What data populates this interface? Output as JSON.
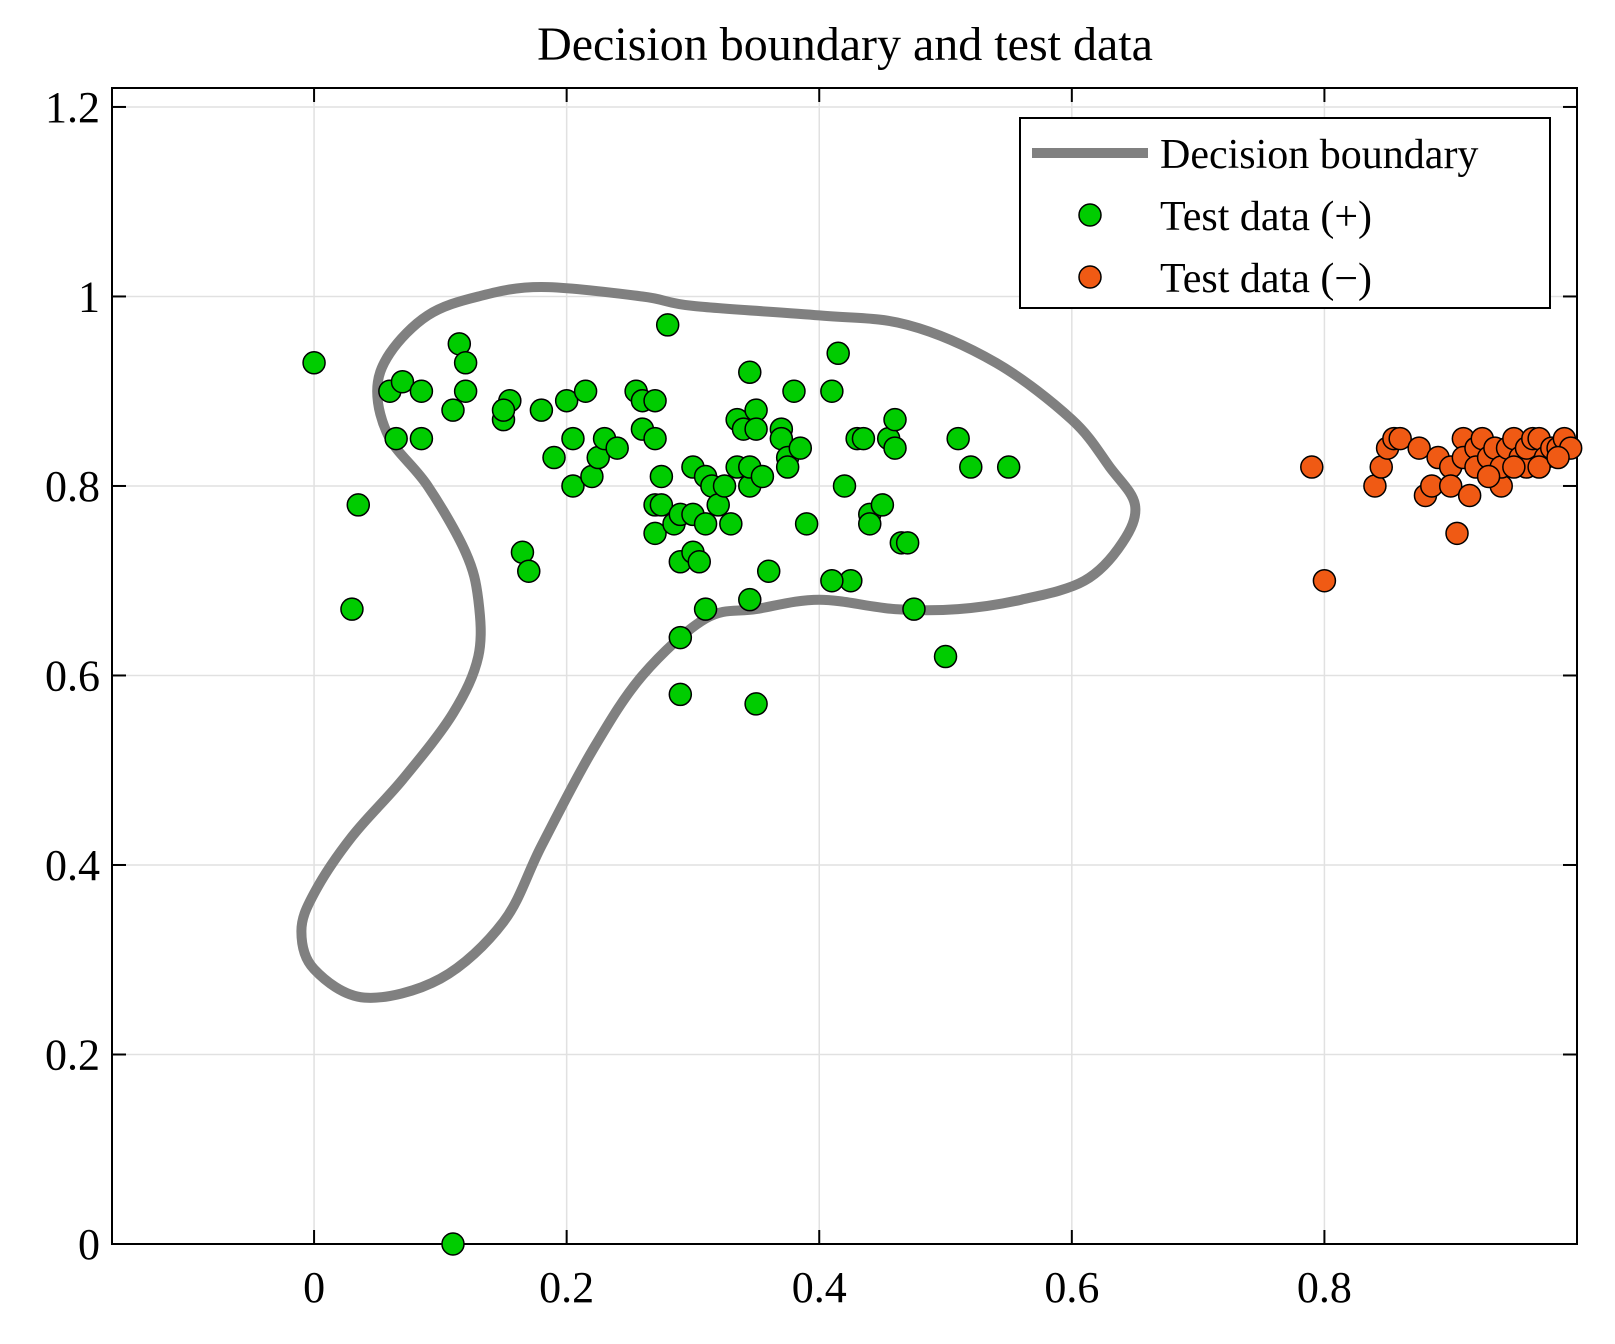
{
  "chart_data": {
    "type": "scatter",
    "title": "Decision boundary and test data",
    "xlabel": "",
    "ylabel": "",
    "xlim": [
      -0.16,
      1.0
    ],
    "ylim": [
      0,
      1.22
    ],
    "grid": true,
    "x_ticks": [
      0,
      0.2,
      0.4,
      0.6,
      0.8
    ],
    "x_tick_labels": [
      "0",
      "0.2",
      "0.4",
      "0.6",
      "0.8"
    ],
    "y_ticks": [
      0,
      0.2,
      0.4,
      0.6,
      0.8,
      1.0,
      1.2
    ],
    "y_tick_labels": [
      "0",
      "0.2",
      "0.4",
      "0.6",
      "0.8",
      "1",
      "1.2"
    ],
    "legend_position": "top-right",
    "colors": {
      "boundary": "#808080",
      "positive": "#00cc00",
      "negative": "#f05a14",
      "grid": "#e1e1e1",
      "axis": "#000000"
    },
    "series": [
      {
        "name": "Decision boundary",
        "kind": "line",
        "points": [
          [
            0.09,
            0.98
          ],
          [
            0.13,
            1.0
          ],
          [
            0.18,
            1.01
          ],
          [
            0.26,
            1.0
          ],
          [
            0.3,
            0.99
          ],
          [
            0.4,
            0.98
          ],
          [
            0.47,
            0.97
          ],
          [
            0.54,
            0.93
          ],
          [
            0.6,
            0.87
          ],
          [
            0.63,
            0.82
          ],
          [
            0.65,
            0.78
          ],
          [
            0.64,
            0.74
          ],
          [
            0.61,
            0.7
          ],
          [
            0.56,
            0.68
          ],
          [
            0.51,
            0.67
          ],
          [
            0.46,
            0.67
          ],
          [
            0.4,
            0.68
          ],
          [
            0.35,
            0.67
          ],
          [
            0.31,
            0.66
          ],
          [
            0.26,
            0.6
          ],
          [
            0.22,
            0.52
          ],
          [
            0.18,
            0.42
          ],
          [
            0.15,
            0.34
          ],
          [
            0.1,
            0.28
          ],
          [
            0.04,
            0.26
          ],
          [
            0.0,
            0.29
          ],
          [
            -0.01,
            0.33
          ],
          [
            0.0,
            0.37
          ],
          [
            0.03,
            0.43
          ],
          [
            0.07,
            0.49
          ],
          [
            0.11,
            0.56
          ],
          [
            0.13,
            0.62
          ],
          [
            0.13,
            0.68
          ],
          [
            0.12,
            0.73
          ],
          [
            0.09,
            0.8
          ],
          [
            0.06,
            0.85
          ],
          [
            0.05,
            0.9
          ],
          [
            0.06,
            0.94
          ],
          [
            0.09,
            0.98
          ]
        ]
      },
      {
        "name": "Test data (+)",
        "kind": "scatter",
        "points": [
          [
            0.0,
            0.93
          ],
          [
            0.03,
            0.67
          ],
          [
            0.035,
            0.78
          ],
          [
            0.06,
            0.9
          ],
          [
            0.065,
            0.85
          ],
          [
            0.07,
            0.91
          ],
          [
            0.085,
            0.9
          ],
          [
            0.085,
            0.85
          ],
          [
            0.11,
            0.88
          ],
          [
            0.115,
            0.95
          ],
          [
            0.12,
            0.93
          ],
          [
            0.12,
            0.9
          ],
          [
            0.15,
            0.87
          ],
          [
            0.155,
            0.89
          ],
          [
            0.15,
            0.88
          ],
          [
            0.165,
            0.73
          ],
          [
            0.17,
            0.71
          ],
          [
            0.18,
            0.88
          ],
          [
            0.19,
            0.83
          ],
          [
            0.2,
            0.89
          ],
          [
            0.205,
            0.85
          ],
          [
            0.205,
            0.8
          ],
          [
            0.215,
            0.9
          ],
          [
            0.22,
            0.81
          ],
          [
            0.225,
            0.83
          ],
          [
            0.23,
            0.85
          ],
          [
            0.24,
            0.84
          ],
          [
            0.255,
            0.9
          ],
          [
            0.26,
            0.89
          ],
          [
            0.26,
            0.86
          ],
          [
            0.27,
            0.89
          ],
          [
            0.27,
            0.85
          ],
          [
            0.27,
            0.78
          ],
          [
            0.27,
            0.75
          ],
          [
            0.275,
            0.81
          ],
          [
            0.275,
            0.78
          ],
          [
            0.28,
            0.97
          ],
          [
            0.285,
            0.76
          ],
          [
            0.29,
            0.77
          ],
          [
            0.29,
            0.72
          ],
          [
            0.3,
            0.82
          ],
          [
            0.3,
            0.77
          ],
          [
            0.3,
            0.73
          ],
          [
            0.305,
            0.72
          ],
          [
            0.31,
            0.81
          ],
          [
            0.31,
            0.76
          ],
          [
            0.315,
            0.8
          ],
          [
            0.32,
            0.78
          ],
          [
            0.325,
            0.8
          ],
          [
            0.33,
            0.76
          ],
          [
            0.335,
            0.82
          ],
          [
            0.335,
            0.87
          ],
          [
            0.34,
            0.86
          ],
          [
            0.345,
            0.92
          ],
          [
            0.345,
            0.8
          ],
          [
            0.345,
            0.82
          ],
          [
            0.35,
            0.88
          ],
          [
            0.35,
            0.86
          ],
          [
            0.355,
            0.81
          ],
          [
            0.36,
            0.71
          ],
          [
            0.37,
            0.86
          ],
          [
            0.37,
            0.85
          ],
          [
            0.375,
            0.83
          ],
          [
            0.375,
            0.82
          ],
          [
            0.38,
            0.9
          ],
          [
            0.385,
            0.84
          ],
          [
            0.39,
            0.76
          ],
          [
            0.41,
            0.9
          ],
          [
            0.415,
            0.94
          ],
          [
            0.42,
            0.8
          ],
          [
            0.425,
            0.7
          ],
          [
            0.41,
            0.7
          ],
          [
            0.43,
            0.85
          ],
          [
            0.435,
            0.85
          ],
          [
            0.44,
            0.77
          ],
          [
            0.44,
            0.76
          ],
          [
            0.45,
            0.78
          ],
          [
            0.455,
            0.85
          ],
          [
            0.46,
            0.87
          ],
          [
            0.46,
            0.84
          ],
          [
            0.465,
            0.74
          ],
          [
            0.47,
            0.74
          ],
          [
            0.475,
            0.67
          ],
          [
            0.5,
            0.62
          ],
          [
            0.51,
            0.85
          ],
          [
            0.52,
            0.82
          ],
          [
            0.55,
            0.82
          ],
          [
            0.29,
            0.64
          ],
          [
            0.31,
            0.67
          ],
          [
            0.345,
            0.68
          ],
          [
            0.29,
            0.58
          ],
          [
            0.35,
            0.57
          ],
          [
            0.11,
            0.0
          ]
        ]
      },
      {
        "name": "Test data (−)",
        "kind": "scatter",
        "points": [
          [
            0.79,
            0.82
          ],
          [
            0.8,
            0.7
          ],
          [
            0.84,
            0.8
          ],
          [
            0.845,
            0.82
          ],
          [
            0.85,
            0.84
          ],
          [
            0.855,
            0.85
          ],
          [
            0.86,
            0.85
          ],
          [
            0.875,
            0.84
          ],
          [
            0.88,
            0.79
          ],
          [
            0.885,
            0.8
          ],
          [
            0.89,
            0.83
          ],
          [
            0.9,
            0.82
          ],
          [
            0.9,
            0.8
          ],
          [
            0.905,
            0.75
          ],
          [
            0.91,
            0.85
          ],
          [
            0.91,
            0.83
          ],
          [
            0.915,
            0.79
          ],
          [
            0.92,
            0.84
          ],
          [
            0.92,
            0.82
          ],
          [
            0.925,
            0.85
          ],
          [
            0.93,
            0.83
          ],
          [
            0.935,
            0.84
          ],
          [
            0.94,
            0.8
          ],
          [
            0.94,
            0.82
          ],
          [
            0.945,
            0.84
          ],
          [
            0.95,
            0.85
          ],
          [
            0.955,
            0.83
          ],
          [
            0.96,
            0.82
          ],
          [
            0.96,
            0.84
          ],
          [
            0.965,
            0.85
          ],
          [
            0.97,
            0.85
          ],
          [
            0.975,
            0.83
          ],
          [
            0.98,
            0.84
          ],
          [
            0.985,
            0.84
          ],
          [
            0.99,
            0.85
          ],
          [
            0.995,
            0.84
          ],
          [
            0.93,
            0.81
          ],
          [
            0.95,
            0.82
          ],
          [
            0.97,
            0.82
          ],
          [
            0.985,
            0.83
          ]
        ]
      }
    ]
  }
}
